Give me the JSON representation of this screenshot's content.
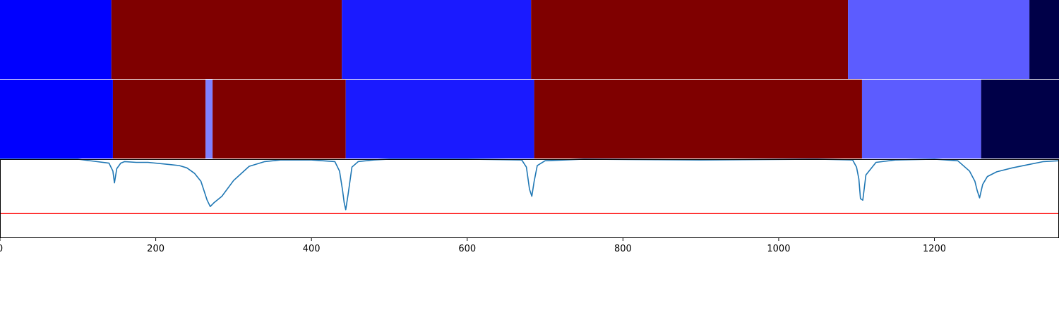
{
  "chart_data": [
    {
      "type": "segments",
      "panel": "ground-truth",
      "xlim": [
        0,
        1360
      ],
      "segments": [
        {
          "start": 0,
          "end": 143,
          "color": "#0000ff"
        },
        {
          "start": 143,
          "end": 439,
          "color": "#7f0000"
        },
        {
          "start": 439,
          "end": 682,
          "color": "#1a1aff"
        },
        {
          "start": 682,
          "end": 1089,
          "color": "#7f0000"
        },
        {
          "start": 1089,
          "end": 1322,
          "color": "#5c5cff"
        },
        {
          "start": 1322,
          "end": 1360,
          "color": "#000048"
        }
      ]
    },
    {
      "type": "segments",
      "panel": "prediction",
      "xlim": [
        0,
        1360
      ],
      "segments": [
        {
          "start": 0,
          "end": 145,
          "color": "#0000ff"
        },
        {
          "start": 145,
          "end": 264,
          "color": "#7f0000"
        },
        {
          "start": 264,
          "end": 273,
          "color": "#8080ff"
        },
        {
          "start": 273,
          "end": 444,
          "color": "#7f0000"
        },
        {
          "start": 444,
          "end": 686,
          "color": "#1a1aff"
        },
        {
          "start": 686,
          "end": 1107,
          "color": "#7f0000"
        },
        {
          "start": 1107,
          "end": 1260,
          "color": "#5c5cff"
        },
        {
          "start": 1260,
          "end": 1360,
          "color": "#000048"
        }
      ]
    },
    {
      "type": "line",
      "panel": "confidence",
      "xlim": [
        0,
        1360
      ],
      "ylim": [
        0,
        1
      ],
      "line_color": "#1f77b4",
      "threshold": {
        "y": 0.31,
        "color": "#ff0000"
      },
      "x": [
        0,
        100,
        140,
        145,
        147,
        150,
        155,
        160,
        175,
        190,
        210,
        220,
        230,
        240,
        250,
        258,
        262,
        266,
        270,
        275,
        285,
        300,
        320,
        340,
        360,
        400,
        430,
        436,
        440,
        442,
        444,
        447,
        452,
        460,
        480,
        500,
        600,
        670,
        676,
        680,
        683,
        686,
        690,
        700,
        750,
        900,
        1050,
        1095,
        1100,
        1103,
        1105,
        1108,
        1112,
        1125,
        1150,
        1200,
        1230,
        1245,
        1252,
        1255,
        1258,
        1262,
        1268,
        1280,
        1300,
        1320,
        1340,
        1360
      ],
      "y": [
        1.0,
        1.0,
        0.95,
        0.85,
        0.7,
        0.88,
        0.95,
        0.97,
        0.96,
        0.96,
        0.94,
        0.93,
        0.92,
        0.89,
        0.82,
        0.72,
        0.6,
        0.48,
        0.4,
        0.45,
        0.53,
        0.73,
        0.91,
        0.97,
        0.99,
        0.99,
        0.97,
        0.85,
        0.6,
        0.45,
        0.36,
        0.55,
        0.9,
        0.97,
        0.99,
        1.0,
        1.0,
        0.99,
        0.9,
        0.62,
        0.53,
        0.72,
        0.92,
        0.98,
        1.0,
        0.99,
        1.0,
        0.99,
        0.9,
        0.75,
        0.5,
        0.48,
        0.8,
        0.96,
        0.99,
        1.0,
        0.98,
        0.85,
        0.72,
        0.6,
        0.51,
        0.68,
        0.78,
        0.84,
        0.89,
        0.93,
        0.97,
        0.98
      ]
    }
  ],
  "xaxis": {
    "ticks": [
      0,
      200,
      400,
      600,
      800,
      1000,
      1200
    ],
    "tick_labels": [
      "0",
      "200",
      "400",
      "600",
      "800",
      "1000",
      "1200"
    ]
  }
}
